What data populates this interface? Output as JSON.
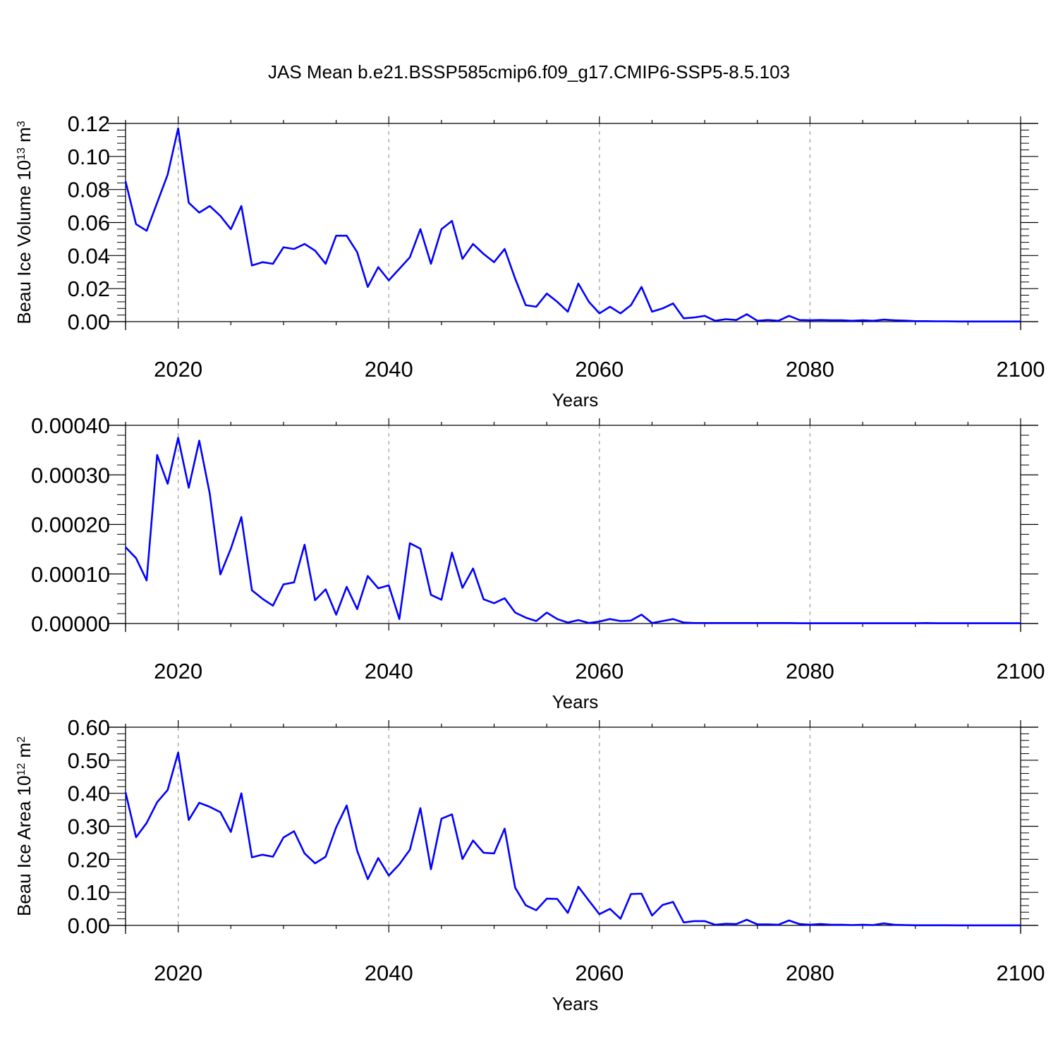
{
  "title": "JAS Mean b.e21.BSSP585cmip6.f09_g17.CMIP6-SSP5-8.5.103",
  "colors": {
    "line": "#0000ff",
    "axis": "#000000",
    "grid": "#999999"
  },
  "chart_data": [
    {
      "type": "line",
      "xlabel": "Years",
      "ylabel": "Beau Ice Volume 10",
      "ylabel_exp": "13",
      "ylabel_unit": "m",
      "ylabel_unit_exp": "3",
      "xlim": [
        2015,
        2100
      ],
      "ylim": [
        0,
        0.12
      ],
      "xticks": [
        2020,
        2040,
        2060,
        2080,
        2100
      ],
      "xtick_labels": [
        "2020",
        "2040",
        "2060",
        "2080",
        "2100"
      ],
      "yticks": [
        0,
        0.02,
        0.04,
        0.06,
        0.08,
        0.1,
        0.12
      ],
      "ytick_labels": [
        "0.00",
        "0.02",
        "0.04",
        "0.06",
        "0.08",
        "0.10",
        "0.12"
      ],
      "grid": "vertical dashed at major x ticks",
      "x": [
        2015,
        2016,
        2017,
        2018,
        2019,
        2020,
        2021,
        2022,
        2023,
        2024,
        2025,
        2026,
        2027,
        2028,
        2029,
        2030,
        2031,
        2032,
        2033,
        2034,
        2035,
        2036,
        2037,
        2038,
        2039,
        2040,
        2041,
        2042,
        2043,
        2044,
        2045,
        2046,
        2047,
        2048,
        2049,
        2050,
        2051,
        2052,
        2053,
        2054,
        2055,
        2056,
        2057,
        2058,
        2059,
        2060,
        2061,
        2062,
        2063,
        2064,
        2065,
        2066,
        2067,
        2068,
        2069,
        2070,
        2071,
        2072,
        2073,
        2074,
        2075,
        2076,
        2077,
        2078,
        2079,
        2080,
        2081,
        2082,
        2083,
        2084,
        2085,
        2086,
        2087,
        2088,
        2089,
        2090,
        2091,
        2092,
        2093,
        2094,
        2095,
        2096,
        2097,
        2098,
        2099,
        2100
      ],
      "y": [
        0.085,
        0.059,
        0.055,
        0.072,
        0.089,
        0.117,
        0.072,
        0.066,
        0.07,
        0.064,
        0.056,
        0.07,
        0.034,
        0.036,
        0.035,
        0.045,
        0.044,
        0.047,
        0.043,
        0.035,
        0.052,
        0.052,
        0.042,
        0.021,
        0.033,
        0.025,
        0.032,
        0.039,
        0.056,
        0.035,
        0.056,
        0.061,
        0.038,
        0.047,
        0.041,
        0.036,
        0.044,
        0.026,
        0.01,
        0.009,
        0.017,
        0.012,
        0.006,
        0.023,
        0.012,
        0.005,
        0.009,
        0.005,
        0.01,
        0.021,
        0.006,
        0.008,
        0.011,
        0.002,
        0.0025,
        0.0035,
        0.0005,
        0.0015,
        0.001,
        0.0045,
        0.0005,
        0.001,
        0.0005,
        0.0035,
        0.001,
        0.0008,
        0.001,
        0.0008,
        0.0008,
        0.0005,
        0.0008,
        0.0005,
        0.0012,
        0.0008,
        0.0006,
        0.0003,
        0.0003,
        0.0002,
        0.0002,
        0.0001,
        0.0001,
        0.0001,
        0.0001,
        0.0001,
        0.0001,
        0.0001
      ]
    },
    {
      "type": "line",
      "xlabel": "Years",
      "ylabel": "",
      "xlim": [
        2015,
        2100
      ],
      "ylim": [
        0,
        0.0004
      ],
      "xticks": [
        2020,
        2040,
        2060,
        2080,
        2100
      ],
      "xtick_labels": [
        "2020",
        "2040",
        "2060",
        "2080",
        "2100"
      ],
      "yticks": [
        0,
        0.0001,
        0.0002,
        0.0003,
        0.0004
      ],
      "ytick_labels": [
        "0.00000",
        "0.00010",
        "0.00020",
        "0.00030",
        "0.00040"
      ],
      "grid": "vertical dashed at major x ticks",
      "x": [
        2015,
        2016,
        2017,
        2018,
        2019,
        2020,
        2021,
        2022,
        2023,
        2024,
        2025,
        2026,
        2027,
        2028,
        2029,
        2030,
        2031,
        2032,
        2033,
        2034,
        2035,
        2036,
        2037,
        2038,
        2039,
        2040,
        2041,
        2042,
        2043,
        2044,
        2045,
        2046,
        2047,
        2048,
        2049,
        2050,
        2051,
        2052,
        2053,
        2054,
        2055,
        2056,
        2057,
        2058,
        2059,
        2060,
        2061,
        2062,
        2063,
        2064,
        2065,
        2066,
        2067,
        2068,
        2069,
        2070,
        2071,
        2072,
        2073,
        2074,
        2075,
        2076,
        2077,
        2078,
        2079,
        2080,
        2081,
        2082,
        2083,
        2084,
        2085,
        2086,
        2087,
        2088,
        2089,
        2090,
        2091,
        2092,
        2093,
        2094,
        2095,
        2096,
        2097,
        2098,
        2099,
        2100
      ],
      "y": [
        0.000154,
        0.000132,
        8.7e-05,
        0.00034,
        0.000282,
        0.000375,
        0.000274,
        0.000369,
        0.000262,
        9.9e-05,
        0.000151,
        0.000215,
        6.7e-05,
        5e-05,
        3.6e-05,
        7.9e-05,
        8.3e-05,
        0.000159,
        4.7e-05,
        6.9e-05,
        1.8e-05,
        7.4e-05,
        2.9e-05,
        9.6e-05,
        7.1e-05,
        7.7e-05,
        9e-06,
        0.000162,
        0.000151,
        5.8e-05,
        4.8e-05,
        0.000143,
        7.2e-05,
        0.000111,
        4.9e-05,
        4.1e-05,
        5.1e-05,
        2.2e-05,
        1.2e-05,
        5e-06,
        2.2e-05,
        9e-06,
        2e-06,
        7e-06,
        1e-06,
        4e-06,
        9e-06,
        5e-06,
        6e-06,
        1.8e-05,
        1e-06,
        5e-06,
        9e-06,
        2e-06,
        1e-06,
        1e-06,
        1e-06,
        1e-06,
        1e-06,
        1e-06,
        1e-06,
        1e-06,
        1e-06,
        1e-06,
        5e-07,
        5e-07,
        5e-07,
        5e-07,
        5e-07,
        5e-07,
        5e-07,
        5e-07,
        5e-07,
        5e-07,
        5e-07,
        5e-07,
        1e-06,
        5e-07,
        5e-07,
        5e-07,
        5e-07,
        5e-07,
        5e-07,
        5e-07,
        5e-07,
        5e-07
      ]
    },
    {
      "type": "line",
      "xlabel": "Years",
      "ylabel": "Beau Ice Area 10",
      "ylabel_exp": "12",
      "ylabel_unit": "m",
      "ylabel_unit_exp": "2",
      "xlim": [
        2015,
        2100
      ],
      "ylim": [
        0,
        0.6
      ],
      "xticks": [
        2020,
        2040,
        2060,
        2080,
        2100
      ],
      "xtick_labels": [
        "2020",
        "2040",
        "2060",
        "2080",
        "2100"
      ],
      "yticks": [
        0,
        0.1,
        0.2,
        0.3,
        0.4,
        0.5,
        0.6
      ],
      "ytick_labels": [
        "0.00",
        "0.10",
        "0.20",
        "0.30",
        "0.40",
        "0.50",
        "0.60"
      ],
      "grid": "vertical dashed at major x ticks",
      "x": [
        2015,
        2016,
        2017,
        2018,
        2019,
        2020,
        2021,
        2022,
        2023,
        2024,
        2025,
        2026,
        2027,
        2028,
        2029,
        2030,
        2031,
        2032,
        2033,
        2034,
        2035,
        2036,
        2037,
        2038,
        2039,
        2040,
        2041,
        2042,
        2043,
        2044,
        2045,
        2046,
        2047,
        2048,
        2049,
        2050,
        2051,
        2052,
        2053,
        2054,
        2055,
        2056,
        2057,
        2058,
        2059,
        2060,
        2061,
        2062,
        2063,
        2064,
        2065,
        2066,
        2067,
        2068,
        2069,
        2070,
        2071,
        2072,
        2073,
        2074,
        2075,
        2076,
        2077,
        2078,
        2079,
        2080,
        2081,
        2082,
        2083,
        2084,
        2085,
        2086,
        2087,
        2088,
        2089,
        2090,
        2091,
        2092,
        2093,
        2094,
        2095,
        2096,
        2097,
        2098,
        2099,
        2100
      ],
      "y": [
        0.403,
        0.267,
        0.31,
        0.373,
        0.41,
        0.523,
        0.319,
        0.371,
        0.359,
        0.343,
        0.283,
        0.4,
        0.206,
        0.214,
        0.208,
        0.266,
        0.285,
        0.218,
        0.188,
        0.208,
        0.297,
        0.363,
        0.226,
        0.14,
        0.204,
        0.151,
        0.185,
        0.229,
        0.355,
        0.17,
        0.323,
        0.336,
        0.201,
        0.257,
        0.22,
        0.218,
        0.293,
        0.114,
        0.061,
        0.046,
        0.081,
        0.08,
        0.038,
        0.117,
        0.075,
        0.034,
        0.05,
        0.02,
        0.095,
        0.096,
        0.03,
        0.062,
        0.071,
        0.009,
        0.013,
        0.013,
        0.002,
        0.005,
        0.004,
        0.017,
        0.003,
        0.003,
        0.002,
        0.015,
        0.004,
        0.002,
        0.004,
        0.002,
        0.002,
        0.001,
        0.002,
        0.001,
        0.006,
        0.002,
        0.001,
        0.0005,
        0.0005,
        0.0005,
        0.0005,
        0.0003,
        0.0003,
        0.0003,
        0.0003,
        0.0003,
        0.0002,
        0.0002
      ]
    }
  ]
}
